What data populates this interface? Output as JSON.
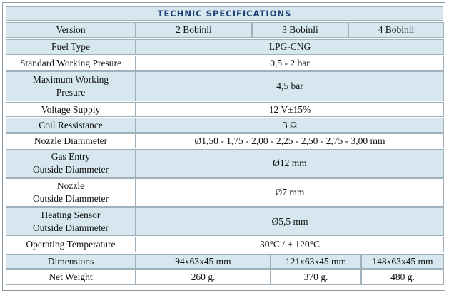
{
  "title": "TECHNIC SPECIFICATIONS",
  "rows": [
    {
      "label": "Version",
      "cells": [
        "2 Bobinli",
        "3 Bobinli",
        "4 Bobinli"
      ]
    },
    {
      "label": "Fuel Type",
      "cells": [
        "LPG-CNG"
      ]
    },
    {
      "label": "Standard Working Presure",
      "cells": [
        "0,5 - 2 bar"
      ]
    },
    {
      "label": "Maximum Working\nPresure",
      "cells": [
        "4,5 bar"
      ]
    },
    {
      "label": "Voltage Supply",
      "cells": [
        "12 V±15%"
      ]
    },
    {
      "label": "Coil Ressistance",
      "cells": [
        "3 Ω"
      ]
    },
    {
      "label": "Nozzle Diammeter",
      "cells": [
        "Ø1,50 - 1,75 - 2,00 - 2,25 - 2,50 - 2,75 - 3,00 mm"
      ]
    },
    {
      "label": "Gas Entry\nOutside Diammeter",
      "cells": [
        "Ø12 mm"
      ]
    },
    {
      "label": "Nozzle\nOutside Diammeter",
      "cells": [
        "Ø7 mm"
      ]
    },
    {
      "label": "Heating Sensor\nOutside Diammeter",
      "cells": [
        "Ø5,5 mm"
      ]
    },
    {
      "label": "Operating Temperature",
      "cells": [
        "30°C / + 120°C"
      ]
    },
    {
      "label": "Dimensions",
      "cells": [
        "94x63x45 mm",
        "121x63x45 mm",
        "148x63x45 mm"
      ]
    },
    {
      "label": "Net Weight",
      "cells": [
        "260 g.",
        "370 g.",
        "480 g."
      ]
    }
  ]
}
